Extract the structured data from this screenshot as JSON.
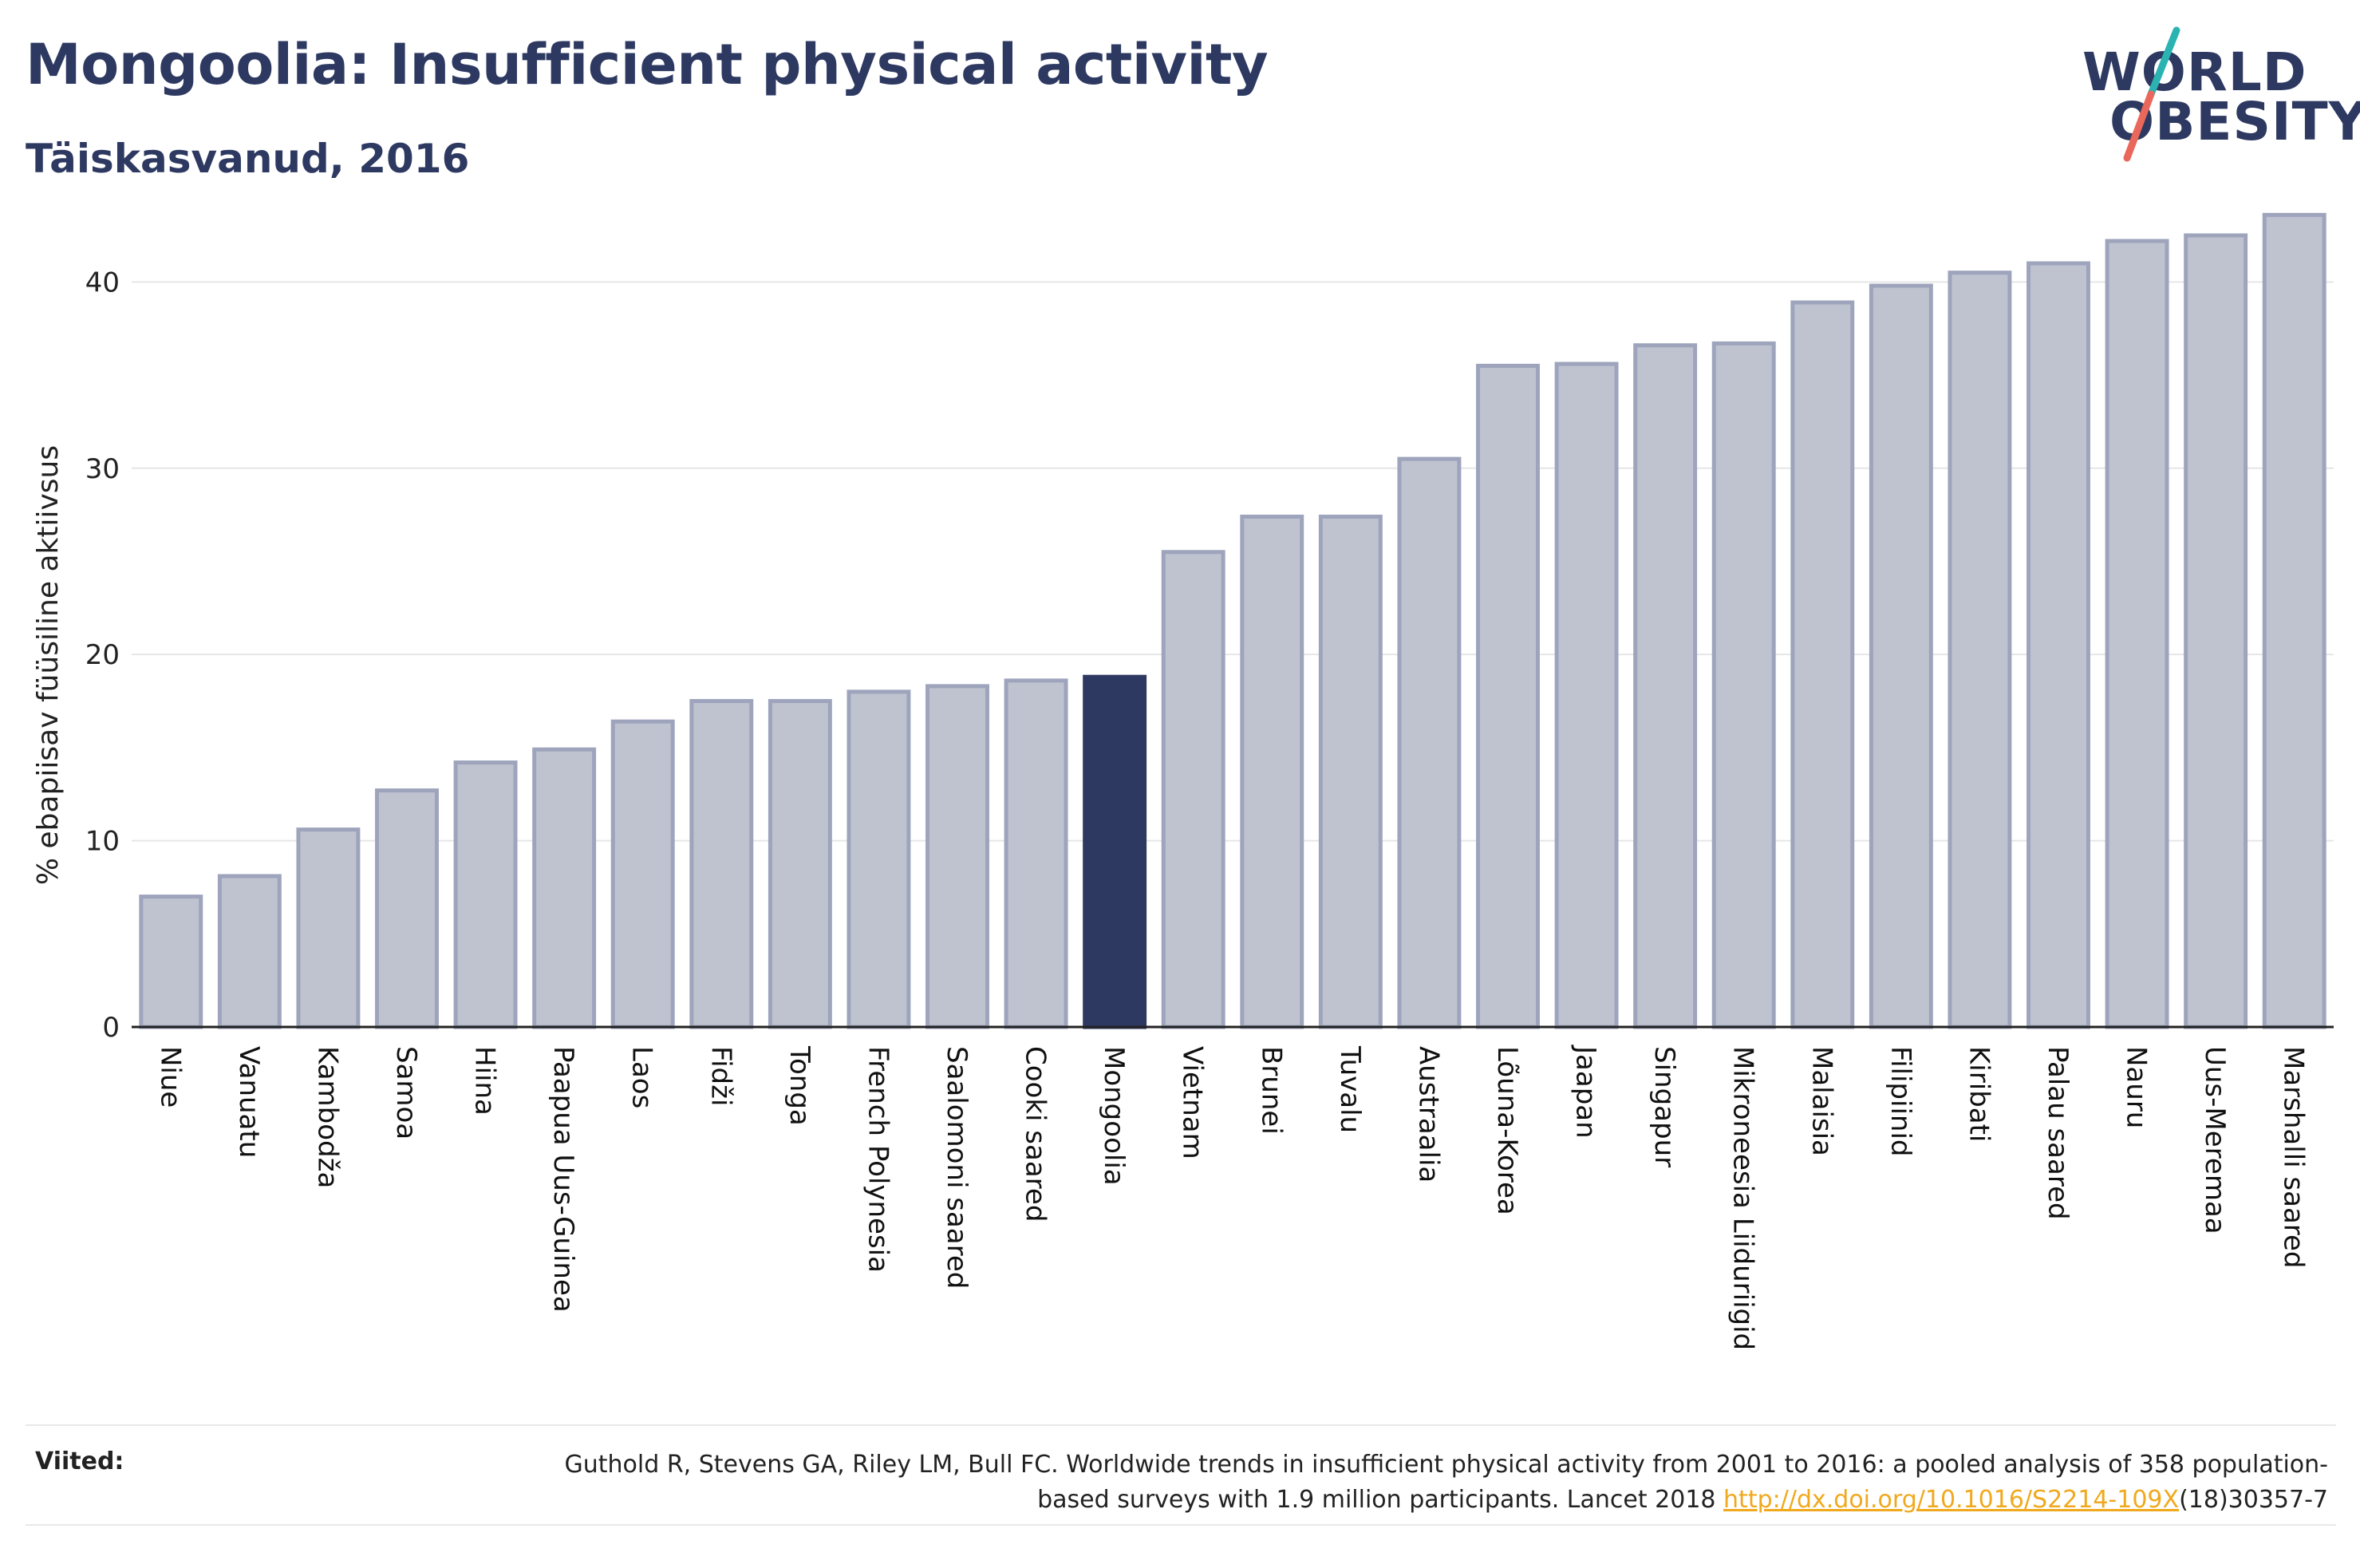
{
  "header": {
    "title": "Mongoolia: Insufficient physical activity",
    "subtitle": "Täiskasvanud, 2016"
  },
  "logo": {
    "line1": "WORLD",
    "line2": "OBESITY",
    "accent_colors": [
      "#2bb3b1",
      "#e9675b"
    ]
  },
  "colors": {
    "bar_default": "#bfc3d0",
    "bar_default_stroke": "#9da4bc",
    "bar_highlight": "#2d3961",
    "title": "#2d3961",
    "link": "#f0a91e"
  },
  "chart_data": {
    "type": "bar",
    "title": "Mongoolia: Insufficient physical activity",
    "subtitle": "Täiskasvanud, 2016",
    "ylabel": "% ebapiisav füüsiline aktiivsus",
    "xlabel": "",
    "ylim": [
      0,
      44
    ],
    "yticks": [
      0,
      10,
      20,
      30,
      40
    ],
    "grid": true,
    "highlight": "Mongoolia",
    "categories": [
      "Niue",
      "Vanuatu",
      "Kambodža",
      "Samoa",
      "Hiina",
      "Paapua Uus-Guinea",
      "Laos",
      "Fidži",
      "Tonga",
      "French Polynesia",
      "Saalomoni saared",
      "Cooki saared",
      "Mongoolia",
      "Vietnam",
      "Brunei",
      "Tuvalu",
      "Austraalia",
      "Lõuna-Korea",
      "Jaapan",
      "Singapur",
      "Mikroneesia Liiduriigid",
      "Malaisia",
      "Filipiinid",
      "Kiribati",
      "Palau saared",
      "Nauru",
      "Uus-Meremaa",
      "Marshalli saared"
    ],
    "values": [
      7.0,
      8.1,
      10.6,
      12.7,
      14.2,
      14.9,
      16.4,
      17.5,
      17.5,
      18.0,
      18.3,
      18.6,
      18.8,
      25.5,
      27.4,
      27.4,
      30.5,
      35.5,
      35.6,
      36.6,
      36.7,
      38.9,
      39.8,
      40.5,
      41.0,
      42.2,
      42.5,
      43.6
    ]
  },
  "references": {
    "label": "Viited:",
    "text_before_link": "Guthold R, Stevens GA, Riley LM, Bull FC. Worldwide trends in insufficient physical activity from 2001 to 2016: a pooled analysis of 358 population-based surveys with 1.9 million participants. Lancet 2018 ",
    "link": "http://dx.doi.org/10.1016/S2214-109X",
    "text_after_link": "(18)30357-7"
  }
}
